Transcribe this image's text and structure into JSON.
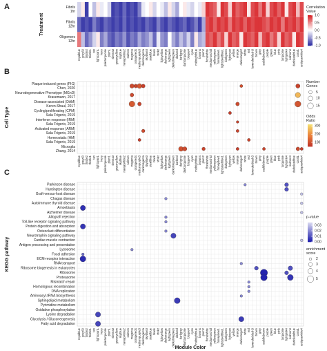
{
  "chart_data": [
    {
      "type": "heatmap",
      "panel": "A",
      "ylabel": "Treatment",
      "x": [
        "royalblue",
        "grey60",
        "thistle2",
        "thistle1",
        "tan",
        "lightcyan1",
        "ivory",
        "paleturquoise",
        "plum1",
        "sienna3",
        "greenyellow",
        "skyblue",
        "navajowhite2",
        "salmon",
        "magenta",
        "orangered4",
        "mediumpurple3",
        "darkmagenta",
        "skyblue3",
        "steelblue",
        "black",
        "violet",
        "lightyellow",
        "darkorange",
        "lightgreen",
        "darkolivegreen",
        "darkred",
        "darkgrey",
        "darkturquoise",
        "bisque4",
        "cyan",
        "midnightblue",
        "brown4",
        "plum2",
        "floralwhite",
        "mediumorchid",
        "yellowgreen",
        "honeydew1",
        "lightsteelblue1",
        "darkgreen",
        "lightcyan",
        "yellow",
        "orange",
        "darkorange2",
        "white",
        "red",
        "lavenderblush3",
        "brown",
        "grey",
        "saddlebrown",
        "purple",
        "green",
        "blue",
        "pink",
        "turquoise",
        "lightpink4",
        "salmon4",
        "darkslateblue",
        "coral1",
        "antiquewhite4"
      ],
      "y": [
        "Fibrils 1hr",
        "Fibrils 12hr",
        "Oligomers 12hr"
      ],
      "values": [
        [
          -0.2,
          0.1,
          -0.9,
          0.0,
          -0.3,
          0.1,
          -0.1,
          0.0,
          -0.2,
          -0.9,
          -0.8,
          -0.9,
          -0.7,
          -0.9,
          -0.8,
          -0.9,
          -0.6,
          -0.1,
          0.0,
          0.1,
          -0.2,
          0.0,
          -0.1,
          -0.3,
          0.1,
          -0.2,
          -0.4,
          0.0,
          0.1,
          -0.1,
          -0.2,
          0.0,
          -0.1,
          0.2,
          0.9,
          0.8,
          0.7,
          0.1,
          0.9,
          0.8,
          0.2,
          0.9,
          0.7,
          0.8,
          0.9,
          0.1,
          0.8,
          0.9,
          0.6,
          0.9,
          0.2,
          0.8,
          0.9,
          0.7,
          0.9,
          0.1,
          0.8,
          0.9,
          0.3,
          0.8
        ],
        [
          -0.7,
          -0.9,
          -0.8,
          -0.9,
          -0.6,
          -0.8,
          -0.9,
          -0.7,
          -0.8,
          -0.9,
          -0.8,
          -0.9,
          -0.7,
          -0.9,
          -0.8,
          -0.9,
          -0.8,
          -0.9,
          -0.7,
          -0.8,
          -0.9,
          -0.6,
          -0.8,
          -0.9,
          -0.7,
          -0.8,
          -0.9,
          -0.8,
          -0.7,
          -0.9,
          -0.8,
          -0.6,
          -0.9,
          -0.4,
          0.8,
          0.9,
          0.7,
          0.9,
          0.8,
          0.9,
          0.6,
          0.9,
          0.8,
          0.9,
          0.7,
          0.9,
          0.8,
          0.9,
          0.9,
          0.8,
          0.7,
          0.9,
          0.8,
          0.9,
          0.6,
          0.9,
          0.8,
          0.9,
          0.7,
          0.9
        ],
        [
          0.6,
          -0.3,
          -0.7,
          -0.5,
          -0.2,
          0.1,
          -0.6,
          -0.4,
          -0.7,
          -0.8,
          -0.6,
          -0.7,
          -0.5,
          -0.8,
          -0.6,
          -0.7,
          -0.4,
          -0.6,
          -0.5,
          -0.3,
          -0.7,
          -0.1,
          -0.5,
          -0.6,
          0.0,
          -0.4,
          -0.6,
          -0.3,
          -0.5,
          -0.2,
          -0.6,
          0.1,
          -0.4,
          -0.3,
          0.8,
          0.7,
          0.9,
          0.6,
          0.8,
          0.2,
          0.9,
          0.7,
          0.8,
          0.1,
          0.9,
          0.8,
          0.7,
          0.9,
          0.3,
          0.8,
          0.9,
          0.6,
          0.8,
          0.2,
          0.9,
          0.7,
          0.8,
          0.1,
          0.9,
          0.8
        ]
      ],
      "color_legend": {
        "title": "Correlation Value",
        "lim": [
          -1,
          1
        ],
        "ticks": [
          {
            "value": 1,
            "label": "1.0"
          },
          0.5,
          {
            "value": 0,
            "label": "0.0"
          },
          -0.5,
          {
            "value": -1,
            "label": "-1.0"
          }
        ]
      }
    },
    {
      "type": "dot",
      "panel": "B",
      "ylabel": "Cell Type",
      "y": [
        "Plaque-induced genes (PIG)",
        "Neurodegenerative Phenotype (MGnD)",
        "Disease-associated (DAM)",
        "Cycling/proliferating (CPM)",
        "Interferon response (IRM)",
        "Activated response (ARM)",
        "Homeostatic (HM)",
        "Microglia"
      ],
      "sources": [
        "Chen, 2020",
        "Krasemann, 2017",
        "Keren-Shaul, 2017",
        "Sala Frigerio, 2019",
        "Sala Frigerio, 2019",
        "Sala Frigerio, 2019",
        "Sala Frigerio, 2019",
        "Zhang, 2014"
      ],
      "dots": {
        "module": [
          "magenta",
          "orangered4",
          "mediumpurple3",
          "darkmagenta",
          "darkorange2",
          "coral1",
          "magenta",
          "coral1",
          "magenta",
          "mediumpurple3",
          "orange",
          "coral1",
          "lightcyan",
          "orange",
          "darkmagenta",
          "orange",
          "mediumpurple3",
          "red",
          "darkgrey",
          "darkturquoise",
          "plum2",
          "orange",
          "saddlebrown",
          "coral1",
          "antiquewhite4"
        ],
        "row": [
          "Plaque-induced genes (PIG)",
          "Plaque-induced genes (PIG)",
          "Plaque-induced genes (PIG)",
          "Plaque-induced genes (PIG)",
          "Plaque-induced genes (PIG)",
          "Plaque-induced genes (PIG)",
          "Neurodegenerative Phenotype (MGnD)",
          "Neurodegenerative Phenotype (MGnD)",
          "Disease-associated (DAM)",
          "Disease-associated (DAM)",
          "Disease-associated (DAM)",
          "Disease-associated (DAM)",
          "Cycling/proliferating (CPM)",
          "Interferon response (IRM)",
          "Activated response (ARM)",
          "Activated response (ARM)",
          "Homeostatic (HM)",
          "Homeostatic (HM)",
          "Microglia",
          "Microglia",
          "Microglia",
          "Microglia",
          "Microglia",
          "Microglia",
          "Microglia"
        ],
        "genes": [
          8,
          6,
          10,
          6,
          4,
          8,
          6,
          12,
          15,
          6,
          6,
          16,
          4,
          3,
          5,
          4,
          4,
          4,
          10,
          8,
          5,
          4,
          4,
          6,
          4
        ],
        "odds_ratio": [
          90,
          80,
          110,
          70,
          100,
          80,
          90,
          260,
          120,
          80,
          90,
          110,
          70,
          80,
          90,
          80,
          70,
          80,
          100,
          90,
          80,
          70,
          80,
          90,
          70
        ]
      },
      "size_legend": {
        "title": "Number Genes",
        "ticks": [
          5,
          10,
          15
        ]
      },
      "color_legend": {
        "title": "Odds Ratio",
        "lim": [
          50,
          320
        ],
        "ticks": [
          300,
          200,
          100
        ]
      }
    },
    {
      "type": "dot",
      "panel": "C",
      "ylabel": "KEGG pathway",
      "xlabel": "Module Color",
      "y": [
        "Parkinson disease",
        "Huntington disease",
        "Graft-versus-host disease",
        "Chagas disease",
        "Autoimmune thyroid disease",
        "Amoebiasis",
        "Alzheimer disease",
        "Allograft rejection",
        "Toll-like receptor signaling pathway",
        "Protein digestion and absorption",
        "Osteoclast differentiation",
        "Neurotrophin signaling pathway",
        "Cardiac muscle contraction",
        "Antigen processing and presentation",
        "Lysosome",
        "Focal adhesion",
        "ECM-receptor interaction",
        "RNA transport",
        "Ribosome biogenesis in eukaryotes",
        "Ribosome",
        "Proteasome",
        "Mismatch repair",
        "Homologous recombination",
        "DNA replication",
        "Aminoacyl-tRNA biosynthesis",
        "Sphingolipid metabolism",
        "Pyrimidine metabolism",
        "Oxidative phosphorylation",
        "Lysine degradation",
        "Glycolysis / Gluconeogenesis",
        "Fatty acid degradation"
      ],
      "dots": {
        "module": [
          "white",
          "lightpink4",
          "lightpink4",
          "antiquewhite4",
          "darkorange",
          "antiquewhite4",
          "grey60",
          "antiquewhite4",
          "darkorange",
          "darkorange",
          "grey60",
          "darkorange",
          "darkolivegreen",
          "antiquewhite4",
          "magenta",
          "grey60",
          "grey60",
          "darkorange2",
          "brown",
          "salmon4",
          "saddlebrown",
          "lightpink4",
          "saddlebrown",
          "salmon4",
          "red",
          "red",
          "red",
          "darkorange2",
          "darkred",
          "lightcyan1",
          "darkorange2",
          "lightcyan1"
        ],
        "row": [
          "Parkinson disease",
          "Parkinson disease",
          "Huntington disease",
          "Graft-versus-host disease",
          "Chagas disease",
          "Autoimmune thyroid disease",
          "Amoebiasis",
          "Alzheimer disease",
          "Allograft rejection",
          "Toll-like receptor signaling pathway",
          "Protein digestion and absorption",
          "Osteoclast differentiation",
          "Neurotrophin signaling pathway",
          "Cardiac muscle contraction",
          "Lysosome",
          "Focal adhesion",
          "ECM-receptor interaction",
          "RNA transport",
          "Ribosome biogenesis in eukaryotes",
          "Ribosome biogenesis in eukaryotes",
          "Ribosome",
          "Ribosome",
          "Proteasome",
          "Proteasome",
          "Mismatch repair",
          "Homologous recombination",
          "DNA replication",
          "Aminoacyl-tRNA biosynthesis",
          "Sphingolipid metabolism",
          "Lysine degradation",
          "Glycolysis / Gluconeogenesis",
          "Fatty acid degradation"
        ],
        "score": [
          2,
          3,
          3,
          2,
          2,
          2,
          4,
          2,
          2,
          2,
          4,
          2,
          4,
          2,
          2,
          2,
          4.5,
          2,
          3,
          3.5,
          5.5,
          3,
          5,
          4.5,
          2,
          2,
          2,
          2,
          4.5,
          4,
          4,
          4
        ],
        "p": [
          0.02,
          0.01,
          0.01,
          0.03,
          0.02,
          0.03,
          0.004,
          0.03,
          0.02,
          0.02,
          0.005,
          0.02,
          0.008,
          0.03,
          0.02,
          0.015,
          0.003,
          0.02,
          0.01,
          0.01,
          0.002,
          0.01,
          0.002,
          0.005,
          0.02,
          0.02,
          0.02,
          0.02,
          0.006,
          0.008,
          0.006,
          0.008
        ]
      },
      "size_legend": {
        "title": "enrichment score",
        "ticks": [
          2,
          3,
          4,
          5
        ]
      },
      "color_legend": {
        "title": "p-value",
        "lim": [
          0,
          0.035
        ],
        "ticks": [
          0.03,
          0.02,
          0.01,
          {
            "value": 0,
            "label": "0.00"
          }
        ]
      }
    }
  ]
}
